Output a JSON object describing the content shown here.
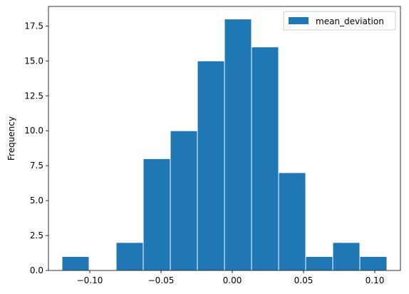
{
  "chart_data": {
    "type": "bar",
    "subtype": "histogram",
    "title": "",
    "xlabel": "",
    "ylabel": "Frequency",
    "series": [
      {
        "name": "mean_deviation",
        "color": "#1f77b4",
        "bins": [
          {
            "x0": -0.1195,
            "x1": -0.1005,
            "count": 1
          },
          {
            "x0": -0.1005,
            "x1": -0.0815,
            "count": 0
          },
          {
            "x0": -0.0815,
            "x1": -0.0625,
            "count": 2
          },
          {
            "x0": -0.0625,
            "x1": -0.0435,
            "count": 8
          },
          {
            "x0": -0.0435,
            "x1": -0.0245,
            "count": 10
          },
          {
            "x0": -0.0245,
            "x1": -0.0055,
            "count": 15
          },
          {
            "x0": -0.0055,
            "x1": 0.0135,
            "count": 18
          },
          {
            "x0": 0.0135,
            "x1": 0.0325,
            "count": 16
          },
          {
            "x0": 0.0325,
            "x1": 0.0515,
            "count": 7
          },
          {
            "x0": 0.0515,
            "x1": 0.0705,
            "count": 1
          },
          {
            "x0": 0.0705,
            "x1": 0.0895,
            "count": 2
          },
          {
            "x0": 0.0895,
            "x1": 0.1085,
            "count": 1
          }
        ]
      }
    ],
    "xlim": [
      -0.129,
      0.118
    ],
    "ylim": [
      0,
      18.9
    ],
    "xticks": [
      -0.1,
      -0.05,
      0.0,
      0.05,
      0.1
    ],
    "xtick_labels": [
      "−0.10",
      "−0.05",
      "0.00",
      "0.05",
      "0.10"
    ],
    "yticks": [
      0.0,
      2.5,
      5.0,
      7.5,
      10.0,
      12.5,
      15.0,
      17.5
    ],
    "ytick_labels": [
      "0.0",
      "2.5",
      "5.0",
      "7.5",
      "10.0",
      "12.5",
      "15.0",
      "17.5"
    ],
    "grid": false,
    "legend_position": "top-right"
  }
}
